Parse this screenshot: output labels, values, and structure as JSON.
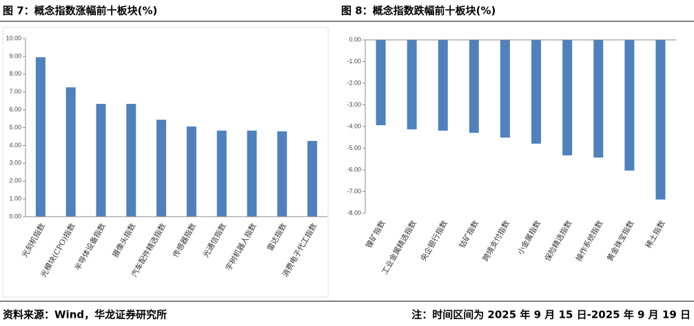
{
  "chart_data": [
    {
      "type": "bar",
      "title": "图 7：概念指数涨幅前十板块(%)",
      "color": "#4f81bd",
      "categories": [
        "光刻机指数",
        "光模块(CPO)指数",
        "半导体设备指数",
        "摄像头指数",
        "汽车配件精选指数",
        "传感器指数",
        "光通信指数",
        "宇树机器人指数",
        "雷达指数",
        "消费电子代工指数"
      ],
      "values": [
        8.95,
        7.26,
        6.33,
        6.33,
        5.44,
        5.06,
        4.83,
        4.83,
        4.79,
        4.25
      ],
      "ylim": [
        0,
        10
      ],
      "yticks": [
        {
          "value": 0,
          "label": "0.00"
        },
        {
          "value": 1,
          "label": "1.00"
        },
        {
          "value": 2,
          "label": "2.00"
        },
        {
          "value": 3,
          "label": "3.00"
        },
        {
          "value": 4,
          "label": "4.00"
        },
        {
          "value": 5,
          "label": "5.00"
        },
        {
          "value": 6,
          "label": "6.00"
        },
        {
          "value": 7,
          "label": "7.00"
        },
        {
          "value": 8,
          "label": "8.00"
        },
        {
          "value": 9,
          "label": "9.00"
        },
        {
          "value": 10,
          "label": "10.00"
        }
      ]
    },
    {
      "type": "bar",
      "title": "图 8：概念指数跌幅前十板块(%)",
      "color": "#4f81bd",
      "categories": [
        "镍矿指数",
        "工业金属精选指数",
        "央企银行指数",
        "钴矿指数",
        "跨境支付指数",
        "小金属指数",
        "保险精选指数",
        "操作系统指数",
        "黄金珠宝指数",
        "稀土指数"
      ],
      "values": [
        -3.94,
        -4.13,
        -4.19,
        -4.29,
        -4.51,
        -4.79,
        -5.33,
        -5.43,
        -6.03,
        -7.37
      ],
      "ylim": [
        -8,
        0
      ],
      "yticks": [
        {
          "value": 0,
          "label": "0.00"
        },
        {
          "value": -1,
          "label": "-1.00"
        },
        {
          "value": -2,
          "label": "-2.00"
        },
        {
          "value": -3,
          "label": "-3.00"
        },
        {
          "value": -4,
          "label": "-4.00"
        },
        {
          "value": -5,
          "label": "-5.00"
        },
        {
          "value": -6,
          "label": "-6.00"
        },
        {
          "value": -7,
          "label": "-7.00"
        },
        {
          "value": -8,
          "label": "-8.00"
        }
      ]
    }
  ],
  "source": "资料来源：Wind，华龙证券研究所",
  "note": "注：时间区间为 2025 年 9 月 15 日-2025 年 9 月 19 日"
}
